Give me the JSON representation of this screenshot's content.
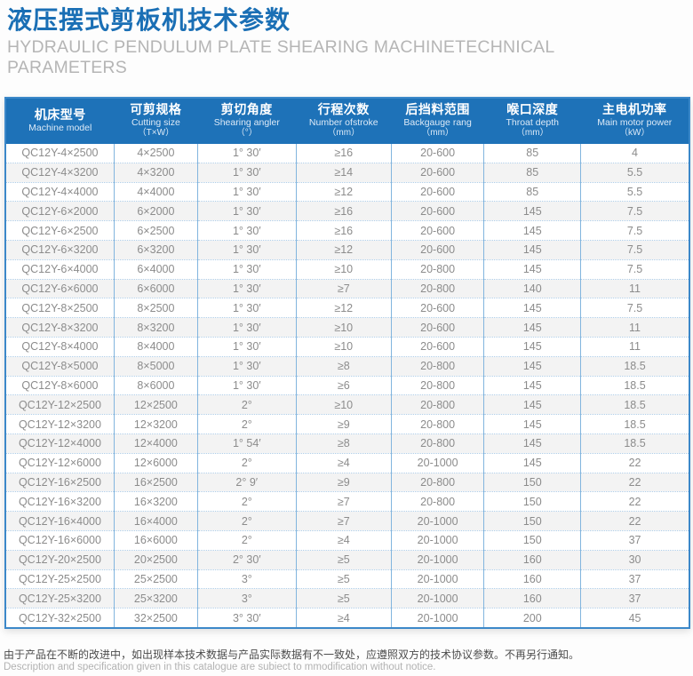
{
  "page": {
    "title_zh": "液压摆式剪板机技术参数",
    "title_en": "HYDRAULIC PENDULUM PLATE SHEARING MACHINETECHNICAL PARAMETERS"
  },
  "colors": {
    "title_blue": "#1a6fb5",
    "header_bg": "#1e72b8",
    "header_text": "#ffffff",
    "body_text": "#8c8c8c",
    "col_separator": "#82b5de",
    "row_separator_dotted": "#aecde8",
    "outer_border": "#3c88c9",
    "even_row_bg": "#f3f3f3"
  },
  "table": {
    "columns": [
      {
        "zh": "机床型号",
        "en": "Machine model",
        "unit": "",
        "width": "15.9%"
      },
      {
        "zh": "可剪规格",
        "en": "Cutting size",
        "unit": "（T×W）",
        "width": "12.2%"
      },
      {
        "zh": "剪切角度",
        "en": "Shearing angler",
        "unit": "（°）",
        "width": "14.4%"
      },
      {
        "zh": "行程次数",
        "en": "Number ofstroke",
        "unit": "（mm）",
        "width": "13.9%"
      },
      {
        "zh": "后挡料范围",
        "en": "Backgauge rang",
        "unit": "（mm）",
        "width": "13.6%"
      },
      {
        "zh": "喉口深度",
        "en": "Throat depth",
        "unit": "（mm）",
        "width": "14.1%"
      },
      {
        "zh": "主电机功率",
        "en": "Main motor power",
        "unit": "（kW）",
        "width": "15.9%"
      }
    ],
    "rows": [
      [
        "QC12Y-4×2500",
        "4×2500",
        "1° 30′",
        "≥16",
        "20-600",
        "85",
        "4"
      ],
      [
        "QC12Y-4×3200",
        "4×3200",
        "1° 30′",
        "≥14",
        "20-600",
        "85",
        "5.5"
      ],
      [
        "QC12Y-4×4000",
        "4×4000",
        "1° 30′",
        "≥12",
        "20-600",
        "85",
        "5.5"
      ],
      [
        "QC12Y-6×2000",
        "6×2000",
        "1° 30′",
        "≥16",
        "20-600",
        "145",
        "7.5"
      ],
      [
        "QC12Y-6×2500",
        "6×2500",
        "1° 30′",
        "≥16",
        "20-600",
        "145",
        "7.5"
      ],
      [
        "QC12Y-6×3200",
        "6×3200",
        "1° 30′",
        "≥12",
        "20-600",
        "145",
        "7.5"
      ],
      [
        "QC12Y-6×4000",
        "6×4000",
        "1° 30′",
        "≥10",
        "20-800",
        "145",
        "7.5"
      ],
      [
        "QC12Y-6×6000",
        "6×6000",
        "1° 30′",
        "≥7",
        "20-800",
        "140",
        "11"
      ],
      [
        "QC12Y-8×2500",
        "8×2500",
        "1° 30′",
        "≥12",
        "20-600",
        "145",
        "7.5"
      ],
      [
        "QC12Y-8×3200",
        "8×3200",
        "1° 30′",
        "≥10",
        "20-600",
        "145",
        "11"
      ],
      [
        "QC12Y-8×4000",
        "8×4000",
        "1° 30′",
        "≥10",
        "20-600",
        "145",
        "11"
      ],
      [
        "QC12Y-8×5000",
        "8×5000",
        "1° 30′",
        "≥8",
        "20-800",
        "145",
        "18.5"
      ],
      [
        "QC12Y-8×6000",
        "8×6000",
        "1° 30′",
        "≥6",
        "20-800",
        "145",
        "18.5"
      ],
      [
        "QC12Y-12×2500",
        "12×2500",
        "2°",
        "≥10",
        "20-800",
        "145",
        "18.5"
      ],
      [
        "QC12Y-12×3200",
        "12×3200",
        "2°",
        "≥9",
        "20-800",
        "145",
        "18.5"
      ],
      [
        "QC12Y-12×4000",
        "12×4000",
        "1° 54′",
        "≥8",
        "20-800",
        "145",
        "18.5"
      ],
      [
        "QC12Y-12×6000",
        "12×6000",
        "2°",
        "≥4",
        "20-1000",
        "145",
        "22"
      ],
      [
        "QC12Y-16×2500",
        "16×2500",
        "2° 9′",
        "≥9",
        "20-800",
        "150",
        "22"
      ],
      [
        "QC12Y-16×3200",
        "16×3200",
        "2°",
        "≥7",
        "20-800",
        "150",
        "22"
      ],
      [
        "QC12Y-16×4000",
        "16×4000",
        "2°",
        "≥7",
        "20-1000",
        "150",
        "22"
      ],
      [
        "QC12Y-16×6000",
        "16×6000",
        "2°",
        "≥4",
        "20-1000",
        "150",
        "37"
      ],
      [
        "QC12Y-20×2500",
        "20×2500",
        "2° 30′",
        "≥5",
        "20-1000",
        "160",
        "30"
      ],
      [
        "QC12Y-25×2500",
        "25×2500",
        "3°",
        "≥5",
        "20-1000",
        "160",
        "37"
      ],
      [
        "QC12Y-25×3200",
        "25×3200",
        "3°",
        "≥5",
        "20-1000",
        "160",
        "37"
      ],
      [
        "QC12Y-32×2500",
        "32×2500",
        "3° 30′",
        "≥4",
        "20-1000",
        "200",
        "45"
      ]
    ]
  },
  "footer": {
    "zh": "由于产品在不断的改进中，如出现样本技术数据与产品实际数据有不一致处，应遵照双方的技术协议参数。不再另行通知。",
    "en": "Description and specification given in this catalogue are subiect to mmodification without notice."
  }
}
